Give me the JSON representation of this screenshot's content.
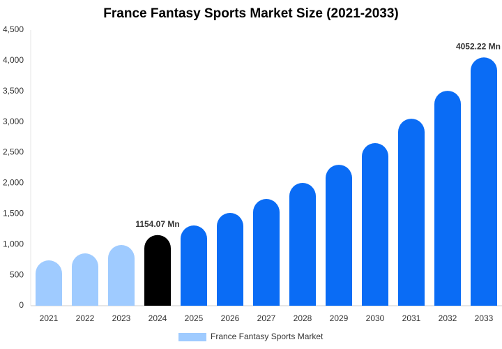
{
  "chart_data": {
    "type": "bar",
    "title": "France Fantasy Sports Market Size (2021-2033)",
    "categories": [
      "2021",
      "2022",
      "2023",
      "2024",
      "2025",
      "2026",
      "2027",
      "2028",
      "2029",
      "2030",
      "2031",
      "2032",
      "2033"
    ],
    "series": [
      {
        "name": "France Fantasy Sports Market",
        "color": "#9fcbff",
        "values": [
          740,
          854,
          991,
          1154.07,
          1310,
          1515,
          1743,
          2005,
          2300,
          2654,
          3052,
          3508,
          4052.22
        ],
        "value_labels": [
          null,
          null,
          null,
          "1154.07 Mn",
          null,
          null,
          null,
          null,
          null,
          null,
          null,
          null,
          "4052.22 Mn"
        ],
        "colors": [
          "#9fcbff",
          "#9fcbff",
          "#9fcbff",
          "#000000",
          "#0a6cf5",
          "#0a6cf5",
          "#0a6cf5",
          "#0a6cf5",
          "#0a6cf5",
          "#0a6cf5",
          "#0a6cf5",
          "#0a6cf5",
          "#0a6cf5"
        ]
      }
    ],
    "ylim": [
      0,
      4500
    ],
    "yticks": [
      0,
      500,
      {
        "value": 1000,
        "label": "1,000"
      },
      {
        "value": 1500,
        "label": "1,500"
      },
      {
        "value": 2000,
        "label": "2,000"
      },
      {
        "value": 2500,
        "label": "2,500"
      },
      {
        "value": 3000,
        "label": "3,000"
      },
      {
        "value": 3500,
        "label": "3,500"
      },
      {
        "value": 4000,
        "label": "4,000"
      },
      {
        "value": 4500,
        "label": "4,500"
      }
    ],
    "grid": false,
    "legend": "bottom"
  }
}
